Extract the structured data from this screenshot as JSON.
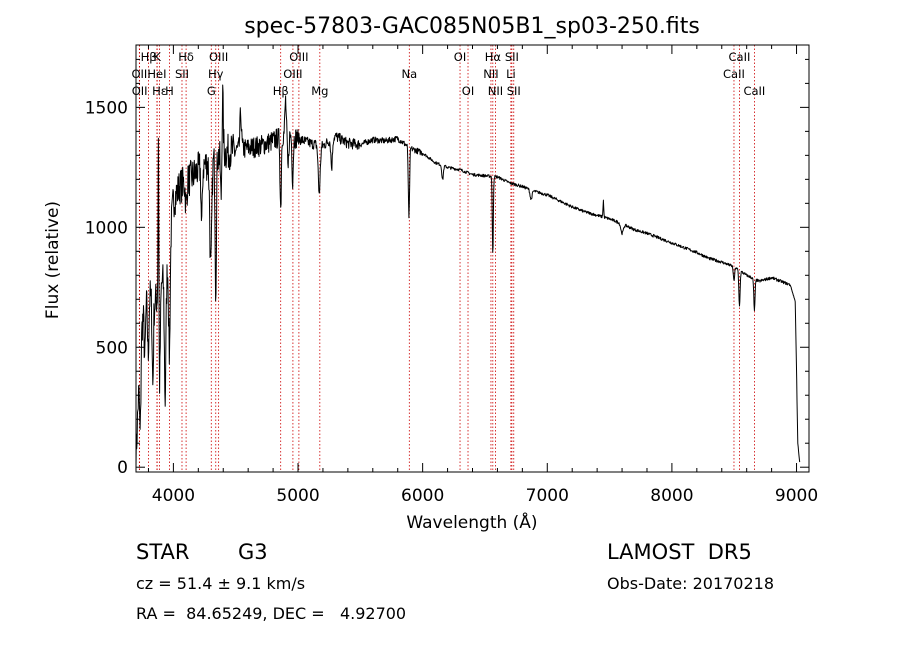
{
  "chart_data": {
    "type": "line",
    "title": "spec-57803-GAC085N05B1_sp03-250.fits",
    "xlabel": "Wavelength (Å)",
    "ylabel": "Flux (relative)",
    "xlim": [
      3700,
      9100
    ],
    "ylim": [
      -20,
      1760
    ],
    "xticks": [
      4000,
      5000,
      6000,
      7000,
      8000,
      9000
    ],
    "yticks": [
      0,
      500,
      1000,
      1500
    ],
    "grid": false,
    "series": [
      {
        "continuum": [
          [
            3700,
            30
          ],
          [
            3720,
            300
          ],
          [
            3750,
            600
          ],
          [
            3800,
            720
          ],
          [
            3850,
            680
          ],
          [
            3900,
            760
          ],
          [
            3950,
            820
          ],
          [
            4000,
            1110
          ],
          [
            4050,
            1170
          ],
          [
            4100,
            1190
          ],
          [
            4150,
            1210
          ],
          [
            4200,
            1240
          ],
          [
            4300,
            1280
          ],
          [
            4400,
            1310
          ],
          [
            4500,
            1320
          ],
          [
            4600,
            1330
          ],
          [
            4700,
            1340
          ],
          [
            4800,
            1360
          ],
          [
            4900,
            1390
          ],
          [
            5000,
            1370
          ],
          [
            5100,
            1350
          ],
          [
            5200,
            1340
          ],
          [
            5300,
            1380
          ],
          [
            5400,
            1350
          ],
          [
            5500,
            1345
          ],
          [
            5600,
            1365
          ],
          [
            5700,
            1360
          ],
          [
            5800,
            1370
          ],
          [
            5900,
            1330
          ],
          [
            6000,
            1310
          ],
          [
            6100,
            1270
          ],
          [
            6200,
            1250
          ],
          [
            6300,
            1240
          ],
          [
            6400,
            1220
          ],
          [
            6500,
            1215
          ],
          [
            6600,
            1210
          ],
          [
            6700,
            1185
          ],
          [
            6800,
            1170
          ],
          [
            6900,
            1150
          ],
          [
            7000,
            1135
          ],
          [
            7100,
            1110
          ],
          [
            7200,
            1085
          ],
          [
            7300,
            1065
          ],
          [
            7400,
            1050
          ],
          [
            7500,
            1035
          ],
          [
            7600,
            1015
          ],
          [
            7700,
            990
          ],
          [
            7800,
            975
          ],
          [
            7900,
            955
          ],
          [
            8000,
            935
          ],
          [
            8100,
            915
          ],
          [
            8200,
            895
          ],
          [
            8300,
            870
          ],
          [
            8400,
            855
          ],
          [
            8500,
            835
          ],
          [
            8600,
            800
          ],
          [
            8700,
            775
          ],
          [
            8800,
            790
          ],
          [
            8900,
            770
          ],
          [
            8950,
            760
          ],
          [
            8990,
            690
          ],
          [
            9010,
            100
          ],
          [
            9025,
            20
          ]
        ],
        "absorption": [
          [
            3734,
            300,
            5
          ],
          [
            3771,
            200,
            5
          ],
          [
            3798,
            250,
            5
          ],
          [
            3835,
            350,
            5
          ],
          [
            3889,
            400,
            6
          ],
          [
            3934,
            520,
            6
          ],
          [
            3968,
            450,
            6
          ],
          [
            4102,
            100,
            6
          ],
          [
            4227,
            250,
            5
          ],
          [
            4300,
            450,
            8
          ],
          [
            4340,
            550,
            5
          ],
          [
            4383,
            200,
            5
          ],
          [
            4861,
            300,
            5
          ],
          [
            4920,
            150,
            5
          ],
          [
            4957,
            180,
            5
          ],
          [
            5170,
            200,
            8
          ],
          [
            5270,
            120,
            6
          ],
          [
            5890,
            300,
            5
          ],
          [
            6160,
            60,
            6
          ],
          [
            6563,
            330,
            4
          ],
          [
            6870,
            40,
            8
          ],
          [
            7600,
            40,
            10
          ],
          [
            8498,
            60,
            5
          ],
          [
            8542,
            150,
            5
          ],
          [
            8662,
            130,
            5
          ]
        ],
        "emission": [
          [
            3880,
            800,
            3
          ],
          [
            4395,
            250,
            5
          ],
          [
            4540,
            150,
            6
          ],
          [
            4900,
            140,
            5
          ],
          [
            7450,
            70,
            3
          ]
        ]
      }
    ],
    "spectral_lines": [
      {
        "label": "Hβ",
        "wavelength": 3801,
        "row": 1
      },
      {
        "label": "OII",
        "wavelength": 3727,
        "row": 2
      },
      {
        "label": "OII",
        "wavelength": 3729,
        "row": 3
      },
      {
        "label": "K",
        "wavelength": 3870,
        "row": 1
      },
      {
        "label": "HeI",
        "wavelength": 3868,
        "row": 2
      },
      {
        "label": "Hε",
        "wavelength": 3889,
        "row": 3
      },
      {
        "label": "H",
        "wavelength": 3968,
        "row": 3
      },
      {
        "label": "Hδ",
        "wavelength": 4102,
        "row": 1
      },
      {
        "label": "SII",
        "wavelength": 4069,
        "row": 2
      },
      {
        "label": "OIII",
        "wavelength": 4363,
        "row": 1
      },
      {
        "label": "Hγ",
        "wavelength": 4340,
        "row": 2
      },
      {
        "label": "G",
        "wavelength": 4304,
        "row": 3
      },
      {
        "label": "OIII",
        "wavelength": 5007,
        "row": 1
      },
      {
        "label": "OIII",
        "wavelength": 4959,
        "row": 2
      },
      {
        "label": "Hβ",
        "wavelength": 4861,
        "row": 3
      },
      {
        "label": "Mg",
        "wavelength": 5175,
        "row": 3
      },
      {
        "label": "Na",
        "wavelength": 5893,
        "row": 2
      },
      {
        "label": "OI",
        "wavelength": 6300,
        "row": 1
      },
      {
        "label": "OI",
        "wavelength": 6364,
        "row": 3
      },
      {
        "label": "Hα",
        "wavelength": 6563,
        "row": 1
      },
      {
        "label": "NII",
        "wavelength": 6548,
        "row": 2
      },
      {
        "label": "NII",
        "wavelength": 6584,
        "row": 3
      },
      {
        "label": "SII",
        "wavelength": 6716,
        "row": 1
      },
      {
        "label": "Li",
        "wavelength": 6708,
        "row": 2
      },
      {
        "label": "SII",
        "wavelength": 6731,
        "row": 3
      },
      {
        "label": "CaII",
        "wavelength": 8542,
        "row": 1
      },
      {
        "label": "CaII",
        "wavelength": 8498,
        "row": 2
      },
      {
        "label": "CaII",
        "wavelength": 8662,
        "row": 3
      }
    ],
    "line_color": "#000000",
    "marker_line_color": "#cc0000"
  },
  "info": {
    "object_class": "STAR",
    "subclass": "G3",
    "survey": "LAMOST  DR5",
    "redshift": "cz = 51.4 ± 9.1 km/s",
    "obs_date": "Obs-Date: 20170218",
    "coords": "RA =  84.65249, DEC =   4.92700"
  }
}
